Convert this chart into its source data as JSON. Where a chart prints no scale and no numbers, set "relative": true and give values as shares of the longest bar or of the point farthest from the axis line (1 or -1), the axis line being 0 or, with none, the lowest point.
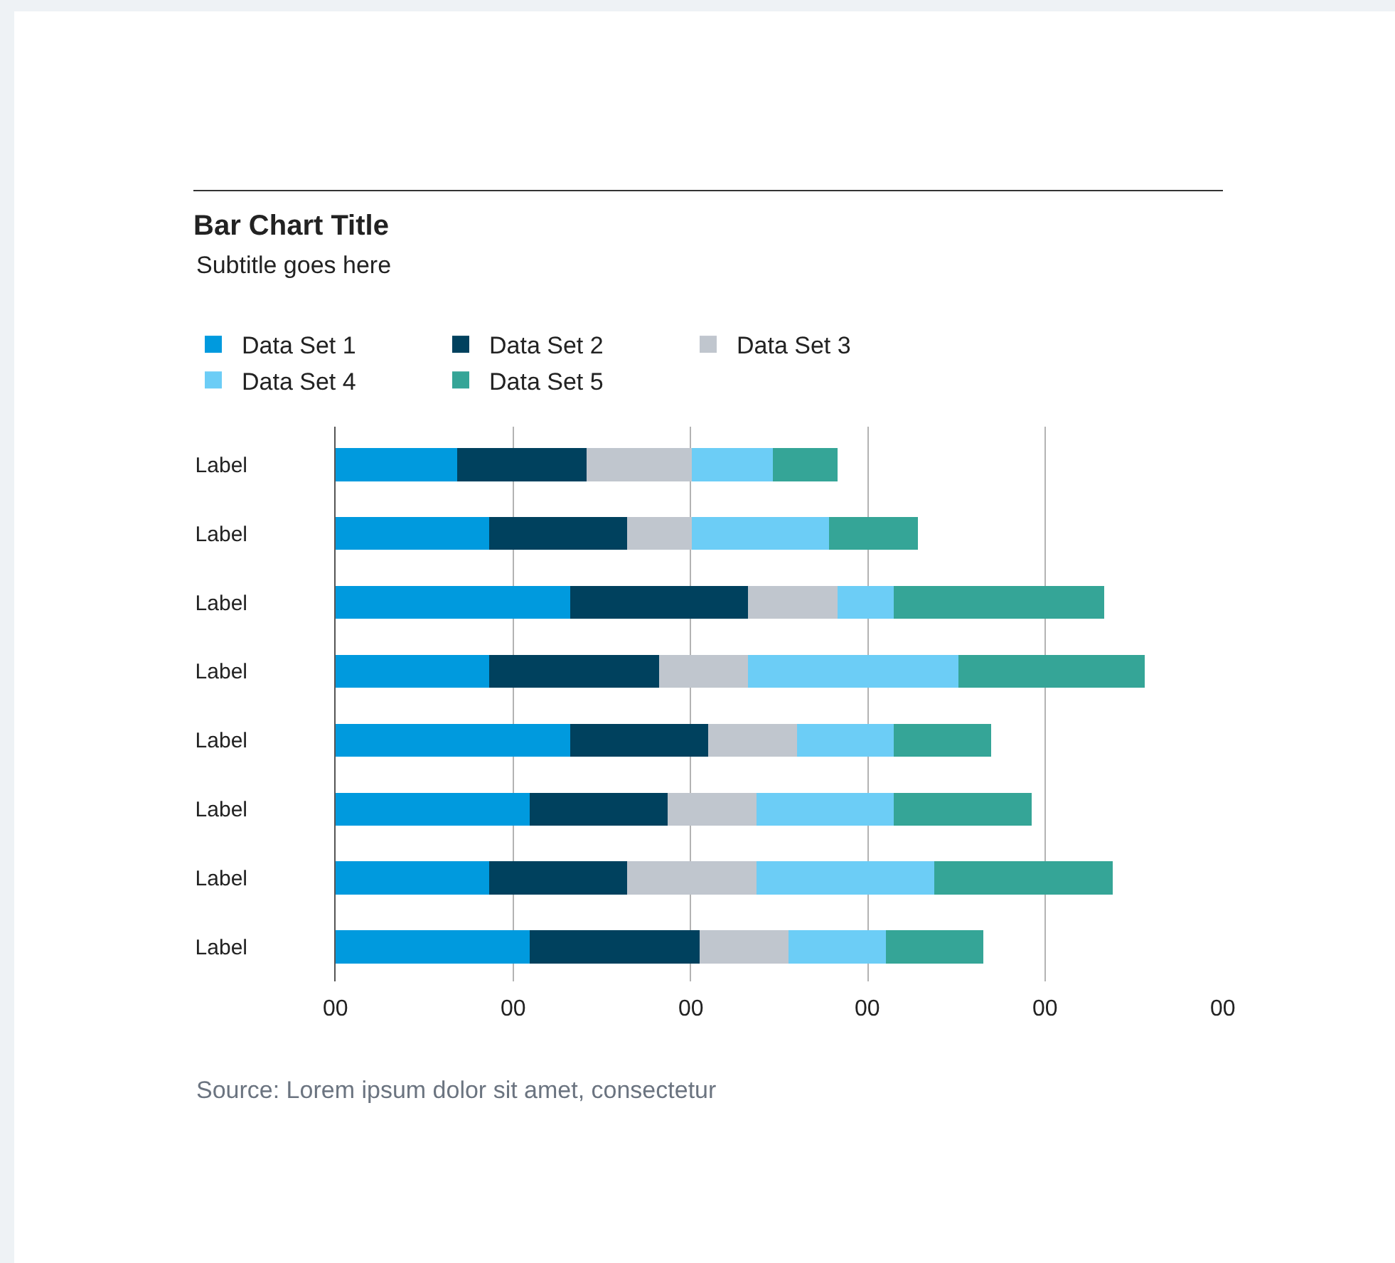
{
  "chart_data": {
    "type": "bar",
    "orientation": "horizontal",
    "stacked": true,
    "relative": true,
    "title": "Bar Chart Title",
    "subtitle": "Subtitle goes here",
    "categories": [
      "Label",
      "Label",
      "Label",
      "Label",
      "Label",
      "Label",
      "Label",
      "Label"
    ],
    "series": [
      {
        "name": "Data Set 1",
        "color": "#009ade",
        "values": [
          0.15,
          0.19,
          0.29,
          0.19,
          0.29,
          0.24,
          0.19,
          0.24
        ]
      },
      {
        "name": "Data Set 2",
        "color": "#00415e",
        "values": [
          0.16,
          0.17,
          0.22,
          0.21,
          0.17,
          0.17,
          0.17,
          0.21
        ]
      },
      {
        "name": "Data Set 3",
        "color": "#c0c6ce",
        "values": [
          0.13,
          0.08,
          0.11,
          0.11,
          0.11,
          0.11,
          0.16,
          0.11
        ]
      },
      {
        "name": "Data Set 4",
        "color": "#6ccdf6",
        "values": [
          0.1,
          0.17,
          0.07,
          0.26,
          0.12,
          0.17,
          0.22,
          0.12
        ]
      },
      {
        "name": "Data Set 5",
        "color": "#35a597",
        "values": [
          0.08,
          0.11,
          0.26,
          0.23,
          0.12,
          0.17,
          0.22,
          0.12
        ]
      }
    ],
    "grid": "x",
    "legend": "top",
    "annotations": [
      "00",
      "00",
      "00",
      "00",
      "00",
      "00",
      "Source: Lorem ipsum dolor sit amet, consectetur"
    ]
  }
}
